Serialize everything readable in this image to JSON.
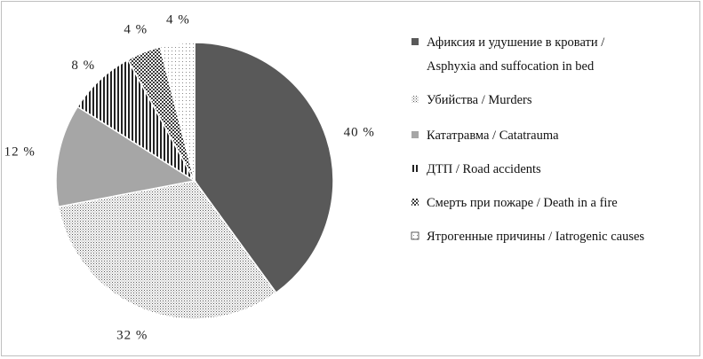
{
  "chart_data": {
    "type": "pie",
    "title": "",
    "slices": [
      {
        "label": "Афиксия и удушение в кровати / Asphyxia and suffocation in bed",
        "legend_lines": [
          "Афиксия и удушение в кровати /",
          "Asphyxia and suffocation in bed"
        ],
        "value": 40,
        "value_label": "40 %",
        "color": "#595959",
        "pattern": "solid"
      },
      {
        "label": "Убийства / Murders",
        "legend_lines": [
          "Убийства / Murders"
        ],
        "value": 32,
        "value_label": "32 %",
        "color": "#d0d0d0",
        "pattern": "fine-dots"
      },
      {
        "label": "Кататравма / Catatrauma",
        "legend_lines": [
          "Кататравма / Catatrauma"
        ],
        "value": 12,
        "value_label": "12 %",
        "color": "#a6a6a6",
        "pattern": "solid"
      },
      {
        "label": "ДТП / Road accidents",
        "legend_lines": [
          "ДТП / Road accidents"
        ],
        "value": 8,
        "value_label": "8 %",
        "color": "#333333",
        "pattern": "vertical-lines"
      },
      {
        "label": "Смерть при пожаре / Death in a fire",
        "legend_lines": [
          "Смерть при пожаре / Death in a fire"
        ],
        "value": 4,
        "value_label": "4 %",
        "color": "#555555",
        "pattern": "checker"
      },
      {
        "label": "Ятрогенные причины / Iatrogenic causes",
        "legend_lines": [
          "Ятрогенные причины / Iatrogenic causes"
        ],
        "value": 4,
        "value_label": "4 %",
        "color": "#bbbbbb",
        "pattern": "sparse-dots"
      }
    ],
    "start_angle_deg": 0,
    "direction": "clockwise",
    "legend_position": "right"
  }
}
